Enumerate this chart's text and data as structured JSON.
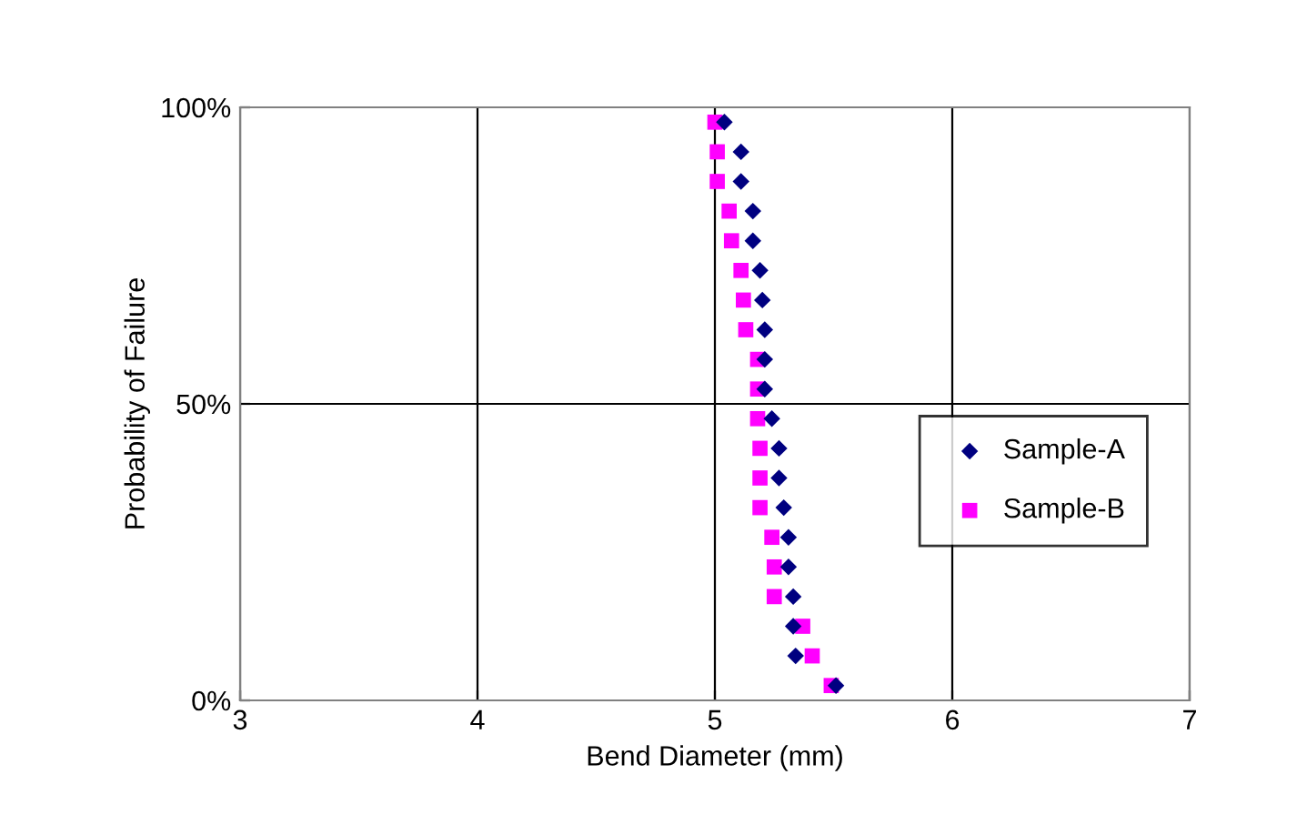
{
  "chart_data": {
    "type": "scatter",
    "xlabel": "Bend Diameter (mm)",
    "ylabel": "Probability of Failure",
    "xlim": [
      3,
      7
    ],
    "xticks": [
      3,
      4,
      5,
      6,
      7
    ],
    "ylim": [
      0,
      100
    ],
    "yticks": [
      {
        "value": 0,
        "label": "0%"
      },
      {
        "value": 50,
        "label": "50%"
      },
      {
        "value": 100,
        "label": "100%"
      }
    ],
    "grid": true,
    "legend": "right",
    "series": [
      {
        "name": "Sample-A",
        "color": "#000080",
        "marker": "diamond",
        "x": [
          5.51,
          5.34,
          5.33,
          5.33,
          5.31,
          5.31,
          5.29,
          5.27,
          5.27,
          5.24,
          5.21,
          5.21,
          5.21,
          5.2,
          5.19,
          5.16,
          5.16,
          5.11,
          5.11,
          5.04
        ],
        "values": [
          2.5,
          7.5,
          12.5,
          17.5,
          22.5,
          27.5,
          32.5,
          37.5,
          42.5,
          47.5,
          52.5,
          57.5,
          62.5,
          67.5,
          72.5,
          77.5,
          82.5,
          87.5,
          92.5,
          97.5
        ]
      },
      {
        "name": "Sample-B",
        "color": "#ff00ff",
        "marker": "square",
        "x": [
          5.49,
          5.41,
          5.37,
          5.25,
          5.25,
          5.24,
          5.19,
          5.19,
          5.19,
          5.18,
          5.18,
          5.18,
          5.13,
          5.12,
          5.11,
          5.07,
          5.06,
          5.01,
          5.01,
          5.0
        ],
        "values": [
          2.5,
          7.5,
          12.5,
          17.5,
          22.5,
          27.5,
          32.5,
          37.5,
          42.5,
          47.5,
          52.5,
          57.5,
          62.5,
          67.5,
          72.5,
          77.5,
          82.5,
          87.5,
          92.5,
          97.5
        ]
      }
    ]
  }
}
